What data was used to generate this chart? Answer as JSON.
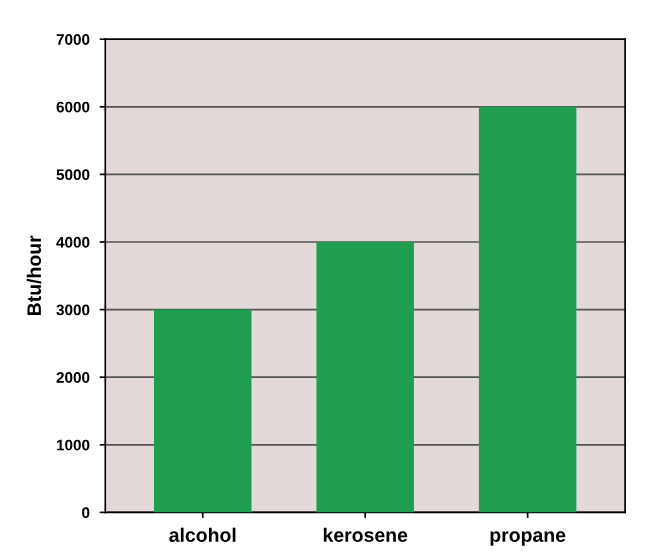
{
  "chart_data": {
    "type": "bar",
    "ylabel": "Btu/hour",
    "categories": [
      "alcohol",
      "kerosene",
      "propane"
    ],
    "values": [
      3000,
      4000,
      6000
    ],
    "color": "#1f9e4f",
    "ylim": [
      0,
      7000
    ],
    "yticks": [
      0,
      1000,
      2000,
      3000,
      4000,
      5000,
      6000,
      7000
    ],
    "grid": "y"
  }
}
